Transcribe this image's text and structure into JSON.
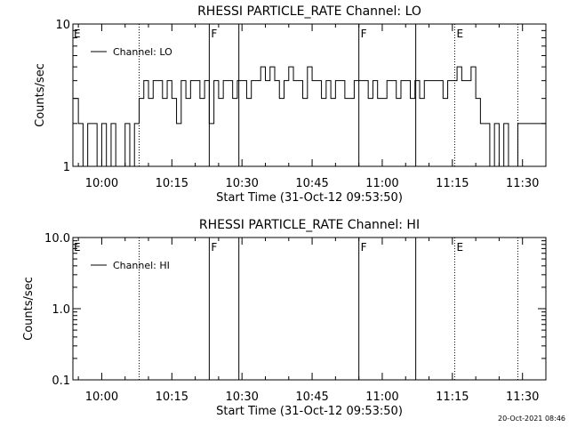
{
  "footer": {
    "timestamp": "20-Oct-2021 08:46"
  },
  "chart_data": [
    {
      "type": "line",
      "title": "RHESSI PARTICLE_RATE Channel: LO",
      "xlabel": "Start Time (31-Oct-12 09:53:50)",
      "ylabel": "Counts/sec",
      "y_scale": "log",
      "ylim": [
        1,
        10
      ],
      "y_ticks": [
        "1",
        "10"
      ],
      "xlim": [
        "09:53:50",
        "11:35:00"
      ],
      "x_ticks": [
        "10:00",
        "10:15",
        "10:30",
        "10:45",
        "11:00",
        "11:15",
        "11:30"
      ],
      "grid": false,
      "legend": {
        "label": "Channel: LO",
        "position": "top-left"
      },
      "markers": [
        {
          "time": "10:08:00",
          "style": "dotted",
          "label": ""
        },
        {
          "time": "10:23:00",
          "style": "solid",
          "label": "F"
        },
        {
          "time": "10:29:20",
          "style": "solid",
          "label": ""
        },
        {
          "time": "10:55:00",
          "style": "solid",
          "label": "F"
        },
        {
          "time": "11:07:10",
          "style": "solid",
          "label": ""
        },
        {
          "time": "11:15:30",
          "style": "dotted",
          "label": "E"
        },
        {
          "time": "11:29:00",
          "style": "dotted",
          "label": ""
        }
      ],
      "edge_label": "E",
      "series": [
        {
          "name": "Channel: LO",
          "x": [
            "09:54",
            "09:55",
            "09:56",
            "09:57",
            "09:58",
            "09:59",
            "10:00",
            "10:01",
            "10:02",
            "10:03",
            "10:04",
            "10:05",
            "10:06",
            "10:07",
            "10:08",
            "10:09",
            "10:10",
            "10:11",
            "10:12",
            "10:13",
            "10:14",
            "10:15",
            "10:16",
            "10:17",
            "10:18",
            "10:19",
            "10:20",
            "10:21",
            "10:22",
            "10:23",
            "10:24",
            "10:25",
            "10:26",
            "10:27",
            "10:28",
            "10:29",
            "10:30",
            "10:31",
            "10:32",
            "10:33",
            "10:34",
            "10:35",
            "10:36",
            "10:37",
            "10:38",
            "10:39",
            "10:40",
            "10:41",
            "10:42",
            "10:43",
            "10:44",
            "10:45",
            "10:46",
            "10:47",
            "10:48",
            "10:49",
            "10:50",
            "10:51",
            "10:52",
            "10:53",
            "10:54",
            "10:55",
            "10:56",
            "10:57",
            "10:58",
            "10:59",
            "11:00",
            "11:01",
            "11:02",
            "11:03",
            "11:04",
            "11:05",
            "11:06",
            "11:07",
            "11:08",
            "11:09",
            "11:10",
            "11:11",
            "11:12",
            "11:13",
            "11:14",
            "11:15",
            "11:16",
            "11:17",
            "11:18",
            "11:19",
            "11:20",
            "11:21",
            "11:22",
            "11:23",
            "11:24",
            "11:25",
            "11:26",
            "11:27",
            "11:28",
            "11:29",
            "11:30",
            "11:31",
            "11:32",
            "11:33",
            "11:34",
            "11:35"
          ],
          "values": [
            3,
            2,
            1,
            2,
            2,
            1,
            2,
            1,
            2,
            1,
            1,
            2,
            1,
            2,
            3,
            4,
            3,
            4,
            4,
            3,
            4,
            3,
            2,
            4,
            3,
            4,
            4,
            3,
            4,
            2,
            4,
            3,
            4,
            4,
            3,
            4,
            4,
            3,
            4,
            4,
            5,
            4,
            5,
            4,
            3,
            4,
            5,
            4,
            4,
            3,
            5,
            4,
            4,
            3,
            4,
            3,
            4,
            4,
            3,
            3,
            4,
            4,
            4,
            3,
            4,
            3,
            3,
            4,
            4,
            3,
            4,
            4,
            3,
            4,
            3,
            4,
            4,
            4,
            4,
            3,
            4,
            4,
            5,
            4,
            4,
            5,
            3,
            2,
            2,
            1,
            2,
            1,
            2,
            1,
            1,
            2,
            2,
            2,
            2,
            2,
            2,
            2
          ]
        }
      ]
    },
    {
      "type": "line",
      "title": "RHESSI PARTICLE_RATE Channel: HI",
      "xlabel": "Start Time (31-Oct-12 09:53:50)",
      "ylabel": "Counts/sec",
      "y_scale": "log",
      "ylim": [
        0.1,
        10
      ],
      "y_ticks": [
        "0.1",
        "1.0",
        "10.0"
      ],
      "xlim": [
        "09:53:50",
        "11:35:00"
      ],
      "x_ticks": [
        "10:00",
        "10:15",
        "10:30",
        "10:45",
        "11:00",
        "11:15",
        "11:30"
      ],
      "grid": false,
      "legend": {
        "label": "Channel: HI",
        "position": "top-left"
      },
      "markers": [
        {
          "time": "10:08:00",
          "style": "dotted",
          "label": ""
        },
        {
          "time": "10:23:00",
          "style": "solid",
          "label": "F"
        },
        {
          "time": "10:29:20",
          "style": "solid",
          "label": ""
        },
        {
          "time": "10:55:00",
          "style": "solid",
          "label": "F"
        },
        {
          "time": "11:07:10",
          "style": "solid",
          "label": ""
        },
        {
          "time": "11:15:30",
          "style": "dotted",
          "label": "E"
        },
        {
          "time": "11:29:00",
          "style": "dotted",
          "label": ""
        }
      ],
      "edge_label": "E",
      "series": [
        {
          "name": "Channel: HI",
          "x": [],
          "values": []
        }
      ]
    }
  ]
}
